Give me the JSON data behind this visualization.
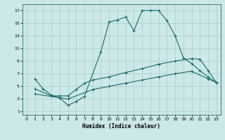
{
  "xlabel": "Humidex (Indice chaleur)",
  "background_color": "#cce8e8",
  "grid_color": "#aacccc",
  "line_color": "#1a6b6b",
  "xlim_min": -0.5,
  "xlim_max": 23.5,
  "ylim_min": 0.5,
  "ylim_max": 18.0,
  "xticks": [
    0,
    1,
    2,
    3,
    4,
    5,
    6,
    7,
    8,
    9,
    10,
    11,
    12,
    13,
    14,
    15,
    16,
    17,
    18,
    19,
    20,
    21,
    22,
    23
  ],
  "yticks": [
    1,
    3,
    5,
    7,
    9,
    11,
    13,
    15,
    17
  ],
  "line1_x": [
    1,
    2,
    3,
    4,
    5,
    6,
    7,
    9,
    10,
    11,
    12,
    13,
    14,
    15,
    16,
    17,
    18,
    19,
    20,
    21,
    22,
    23
  ],
  "line1_y": [
    6.2,
    4.6,
    3.6,
    3.2,
    2.0,
    2.6,
    3.4,
    10.5,
    15.2,
    15.5,
    16.0,
    13.8,
    17.0,
    17.0,
    17.0,
    15.4,
    13.0,
    9.5,
    8.6,
    7.5,
    6.5,
    5.6
  ],
  "line2_x": [
    1,
    3,
    4,
    5,
    6,
    7,
    8,
    10,
    12,
    14,
    16,
    18,
    20,
    21,
    22,
    23
  ],
  "line2_y": [
    4.6,
    3.5,
    3.5,
    3.5,
    4.5,
    5.5,
    6.0,
    6.5,
    7.2,
    7.8,
    8.5,
    9.0,
    9.4,
    9.3,
    7.5,
    5.6
  ],
  "line3_x": [
    1,
    5,
    8,
    10,
    12,
    14,
    16,
    18,
    20,
    22,
    23
  ],
  "line3_y": [
    3.8,
    3.0,
    4.5,
    5.0,
    5.5,
    6.0,
    6.5,
    7.0,
    7.4,
    6.2,
    5.6
  ]
}
